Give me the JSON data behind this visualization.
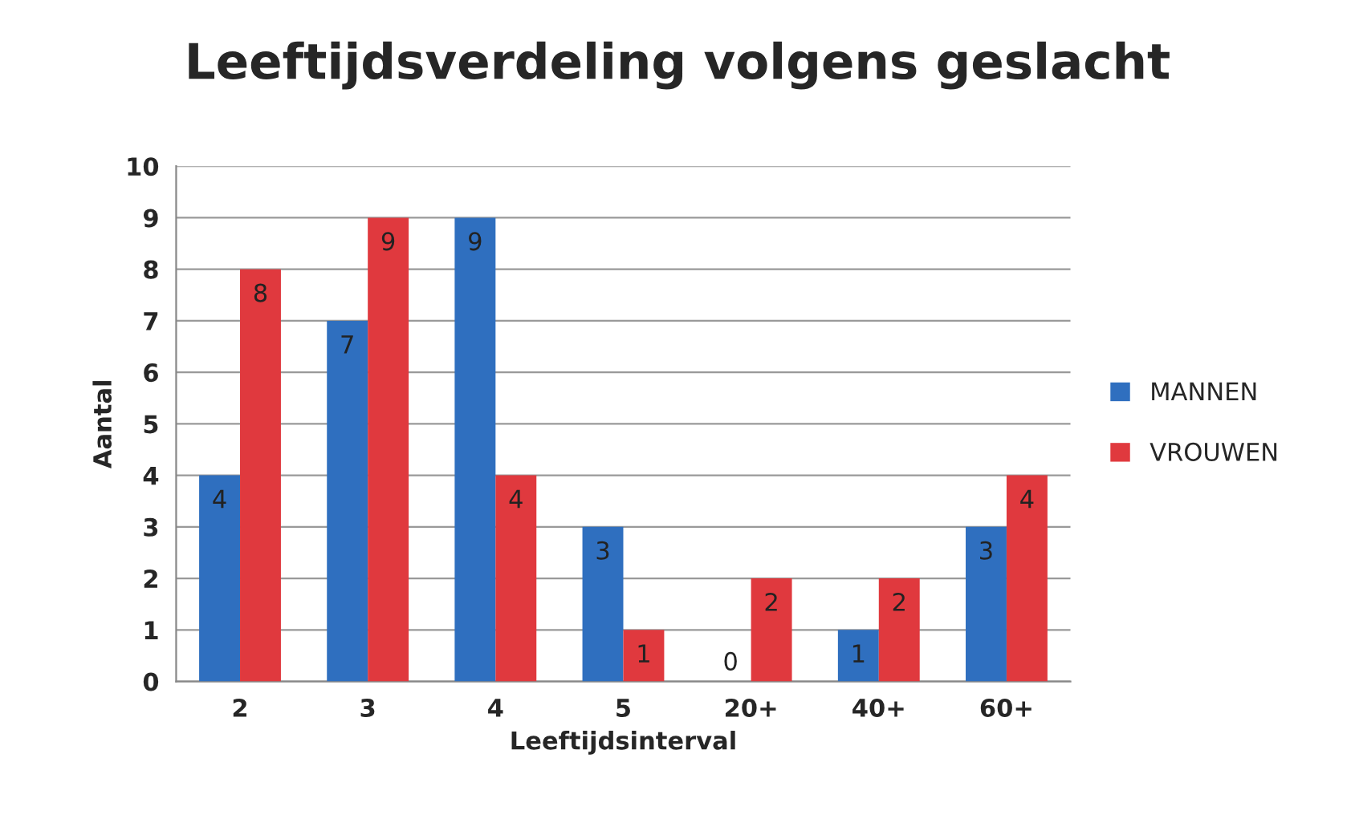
{
  "chart_data": {
    "type": "bar",
    "title": "Leeftijdsverdeling volgens geslacht",
    "xlabel": "Leeftijdsinterval",
    "ylabel": "Aantal",
    "categories": [
      "2",
      "3",
      "4",
      "5",
      "20+",
      "40+",
      "60+"
    ],
    "series": [
      {
        "name": "MANNEN",
        "color": "#2f6fbf",
        "values": [
          4,
          7,
          9,
          3,
          0,
          1,
          3
        ]
      },
      {
        "name": "VROUWEN",
        "color": "#e0393e",
        "values": [
          8,
          9,
          4,
          1,
          2,
          2,
          4
        ]
      }
    ],
    "ylim": [
      0,
      10
    ],
    "yticks": [
      0,
      1,
      2,
      3,
      4,
      5,
      6,
      7,
      8,
      9,
      10
    ],
    "grid": "y",
    "legend": "right",
    "data_labels": true
  }
}
